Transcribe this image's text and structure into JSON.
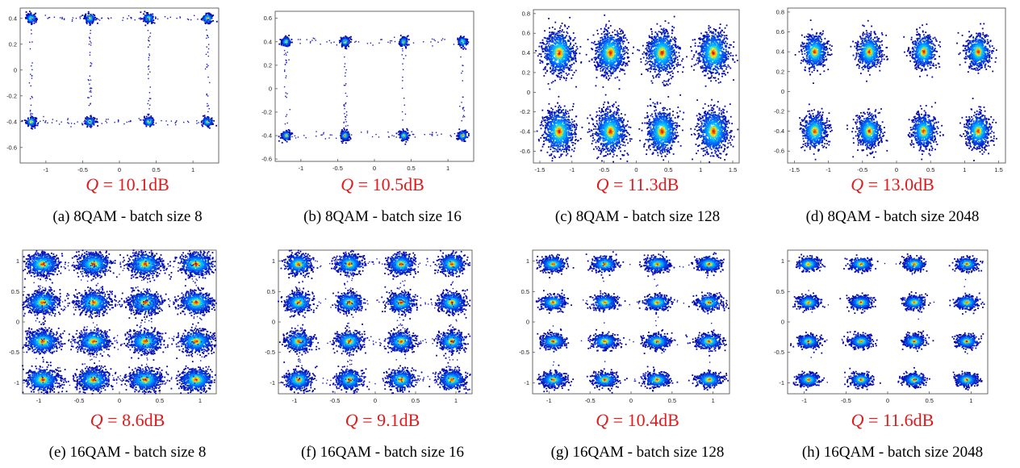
{
  "chart_data": [
    {
      "type": "scatter",
      "caption": "(a) 8QAM - batch size 8",
      "q_label": "Q = 10.1dB",
      "q_var": "Q",
      "q_value": "10.1dB",
      "xlim": [
        -1.35,
        1.35
      ],
      "ylim": [
        -0.72,
        0.48
      ],
      "xticks": [
        -1,
        -0.5,
        0,
        0.5,
        1
      ],
      "yticks": [
        -0.6,
        -0.4,
        -0.2,
        0,
        0.2,
        0.4
      ],
      "xtick_labels": [
        "-1",
        "-0.5",
        "0",
        "0.5",
        "1"
      ],
      "ytick_labels": [
        "-0.6",
        "-0.4",
        "-0.2",
        "0",
        "0.2",
        "0.4"
      ],
      "constellation": {
        "i": [
          -1.2,
          -0.4,
          0.4,
          1.2
        ],
        "q": [
          -0.4,
          0.4
        ]
      },
      "density_pattern": "sparse points along rectangular grid lines with small dense clusters at constellation points",
      "grid": false
    },
    {
      "type": "scatter",
      "caption": "(b) 8QAM - batch size 16",
      "q_label": "Q = 10.5dB",
      "q_var": "Q",
      "q_value": "10.5dB",
      "xlim": [
        -1.35,
        1.35
      ],
      "ylim": [
        -0.62,
        0.66
      ],
      "xticks": [
        -1,
        -0.5,
        0,
        0.5,
        1
      ],
      "yticks": [
        -0.6,
        -0.4,
        -0.2,
        0,
        0.2,
        0.4,
        0.6
      ],
      "xtick_labels": [
        "-1",
        "-0.5",
        "0",
        "0.5",
        "1"
      ],
      "ytick_labels": [
        "-0.6",
        "-0.4",
        "-0.2",
        "0",
        "0.2",
        "0.4",
        "0.6"
      ],
      "constellation": {
        "i": [
          -1.2,
          -0.4,
          0.4,
          1.2
        ],
        "q": [
          -0.4,
          0.4
        ]
      },
      "density_pattern": "sparse points along rectangular grid lines with ring-shaped clusters at constellation points",
      "grid": false
    },
    {
      "type": "scatter",
      "caption": "(c) 8QAM - batch size 128",
      "q_label": "Q = 11.3dB",
      "q_var": "Q",
      "q_value": "11.3dB",
      "xlim": [
        -1.6,
        1.6
      ],
      "ylim": [
        -0.72,
        0.84
      ],
      "xticks": [
        -1.5,
        -1,
        -0.5,
        0,
        0.5,
        1,
        1.5
      ],
      "yticks": [
        -0.6,
        -0.4,
        -0.2,
        0,
        0.2,
        0.4,
        0.6,
        0.8
      ],
      "xtick_labels": [
        "-1.5",
        "-1",
        "-0.5",
        "0",
        "0.5",
        "1",
        "1.5"
      ],
      "ytick_labels": [
        "-0.6",
        "-0.4",
        "-0.2",
        "0",
        "0.2",
        "0.4",
        "0.6",
        "0.8"
      ],
      "constellation": {
        "i": [
          -1.2,
          -0.4,
          0.4,
          1.2
        ],
        "q": [
          -0.4,
          0.4
        ]
      },
      "density_pattern": "large elliptical clusters",
      "grid": false
    },
    {
      "type": "scatter",
      "caption": "(d) 8QAM - batch size 2048",
      "q_label": "Q = 13.0dB",
      "q_var": "Q",
      "q_value": "13.0dB",
      "xlim": [
        -1.6,
        1.6
      ],
      "ylim": [
        -0.72,
        0.84
      ],
      "xticks": [
        -1.5,
        -1,
        -0.5,
        0,
        0.5,
        1,
        1.5
      ],
      "yticks": [
        -0.6,
        -0.4,
        -0.2,
        0,
        0.2,
        0.4,
        0.6,
        0.8
      ],
      "xtick_labels": [
        "-1.5",
        "-1",
        "-0.5",
        "0",
        "0.5",
        "1",
        "1.5"
      ],
      "ytick_labels": [
        "-0.6",
        "-0.4",
        "-0.2",
        "0",
        "0.2",
        "0.4",
        "0.6",
        "0.8"
      ],
      "constellation": {
        "i": [
          -1.2,
          -0.4,
          0.4,
          1.2
        ],
        "q": [
          -0.4,
          0.4
        ]
      },
      "density_pattern": "compact elliptical clusters",
      "grid": false
    },
    {
      "type": "scatter",
      "caption": "(e) 16QAM - batch size 8",
      "q_label": "Q = 8.6dB",
      "q_var": "Q",
      "q_value": "8.6dB",
      "xlim": [
        -1.2,
        1.2
      ],
      "ylim": [
        -1.18,
        1.18
      ],
      "xticks": [
        -1,
        -0.5,
        0,
        0.5,
        1
      ],
      "yticks": [
        -1,
        -0.5,
        0,
        0.5,
        1
      ],
      "xtick_labels": [
        "-1",
        "-0.5",
        "0",
        "0.5",
        "1"
      ],
      "ytick_labels": [
        "-1",
        "-0.5",
        "0",
        "0.5",
        "1"
      ],
      "constellation": {
        "i": [
          -0.95,
          -0.32,
          0.32,
          0.95
        ],
        "q": [
          -0.95,
          -0.32,
          0.32,
          0.95
        ]
      },
      "density_pattern": "broad clusters with heavy scatter between points",
      "grid": false
    },
    {
      "type": "scatter",
      "caption": "(f) 16QAM - batch size 16",
      "q_label": "Q = 9.1dB",
      "q_var": "Q",
      "q_value": "9.1dB",
      "xlim": [
        -1.2,
        1.2
      ],
      "ylim": [
        -1.18,
        1.18
      ],
      "xticks": [
        -1,
        -0.5,
        0,
        0.5,
        1
      ],
      "yticks": [
        -1,
        -0.5,
        0,
        0.5,
        1
      ],
      "xtick_labels": [
        "-1",
        "-0.5",
        "0",
        "0.5",
        "1"
      ],
      "ytick_labels": [
        "-1",
        "-0.5",
        "0",
        "0.5",
        "1"
      ],
      "constellation": {
        "i": [
          -0.95,
          -0.32,
          0.32,
          0.95
        ],
        "q": [
          -0.95,
          -0.32,
          0.32,
          0.95
        ]
      },
      "density_pattern": "clusters with scatter along grid lines",
      "grid": false
    },
    {
      "type": "scatter",
      "caption": "(g) 16QAM - batch size 128",
      "q_label": "Q = 10.4dB",
      "q_var": "Q",
      "q_value": "10.4dB",
      "xlim": [
        -1.2,
        1.2
      ],
      "ylim": [
        -1.18,
        1.18
      ],
      "xticks": [
        -1,
        -0.5,
        0,
        0.5,
        1
      ],
      "yticks": [
        -1,
        -0.5,
        0,
        0.5,
        1
      ],
      "xtick_labels": [
        "-1",
        "-0.5",
        "0",
        "0.5",
        "1"
      ],
      "ytick_labels": [
        "-1",
        "-0.5",
        "0",
        "0.5",
        "1"
      ],
      "constellation": {
        "i": [
          -0.95,
          -0.32,
          0.32,
          0.95
        ],
        "q": [
          -0.95,
          -0.32,
          0.32,
          0.95
        ]
      },
      "density_pattern": "distinct clusters",
      "grid": false
    },
    {
      "type": "scatter",
      "caption": "(h) 16QAM - batch size 2048",
      "q_label": "Q = 11.6dB",
      "q_var": "Q",
      "q_value": "11.6dB",
      "xlim": [
        -1.2,
        1.2
      ],
      "ylim": [
        -1.18,
        1.18
      ],
      "xticks": [
        -1,
        -0.5,
        0,
        0.5,
        1
      ],
      "yticks": [
        -1,
        -0.5,
        0,
        0.5,
        1
      ],
      "xtick_labels": [
        "-1",
        "-0.5",
        "0",
        "0.5",
        "1"
      ],
      "ytick_labels": [
        "-1",
        "-0.5",
        "0",
        "0.5",
        "1"
      ],
      "constellation": {
        "i": [
          -0.95,
          -0.32,
          0.32,
          0.95
        ],
        "q": [
          -0.95,
          -0.32,
          0.32,
          0.95
        ]
      },
      "density_pattern": "compact distinct clusters",
      "grid": false
    }
  ],
  "colors": {
    "q_label": "#e31a1c",
    "density_low": "#0000aa",
    "density_mid": "#00c8ff",
    "density_high": "#ffdd00",
    "density_peak": "#e00000",
    "axes": "#333333"
  }
}
